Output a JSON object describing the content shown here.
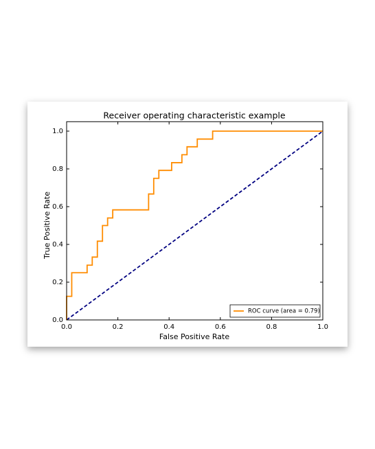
{
  "chart_data": {
    "type": "line",
    "title": "Receiver operating characteristic example",
    "x_label": "False Positive Rate",
    "y_label": "True Positive Rate",
    "xlim": [
      0,
      1
    ],
    "ylim": [
      0,
      1.05
    ],
    "xticks": [
      {
        "value": 0,
        "label": "0.0"
      },
      0.2,
      0.4,
      0.6,
      0.8,
      {
        "value": 1,
        "label": "1.0"
      }
    ],
    "yticks": [
      {
        "value": 0,
        "label": "0.0"
      },
      0.2,
      0.4,
      0.6,
      0.8,
      {
        "value": 1,
        "label": "1.0"
      }
    ],
    "legend": "lower right",
    "series": [
      {
        "name": "ROC curve (area = 0.79)",
        "color": "darkorange",
        "x": [
          0,
          0,
          0.02,
          0.02,
          0.08,
          0.08,
          0.1,
          0.1,
          0.12,
          0.12,
          0.14,
          0.14,
          0.16,
          0.16,
          0.18,
          0.18,
          0.32,
          0.32,
          0.34,
          0.34,
          0.36,
          0.36,
          0.41,
          0.41,
          0.45,
          0.45,
          0.47,
          0.47,
          0.51,
          0.51,
          0.57,
          0.57,
          1
        ],
        "values": [
          0,
          0.125,
          0.125,
          0.25,
          0.25,
          0.29,
          0.29,
          0.333,
          0.333,
          0.417,
          0.417,
          0.5,
          0.5,
          0.54,
          0.54,
          0.583,
          0.583,
          0.667,
          0.667,
          0.75,
          0.75,
          0.792,
          0.792,
          0.833,
          0.833,
          0.875,
          0.875,
          0.917,
          0.917,
          0.958,
          0.958,
          1,
          1
        ]
      }
    ],
    "reference_line": {
      "x": [
        0,
        1
      ],
      "values": [
        0,
        1
      ],
      "color": "navy",
      "dashed": true
    }
  }
}
